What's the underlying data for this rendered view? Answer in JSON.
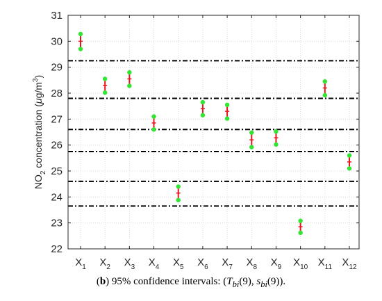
{
  "chart_data": {
    "type": "errorbar",
    "categories": [
      {
        "base": "X",
        "sub": "1"
      },
      {
        "base": "X",
        "sub": "2"
      },
      {
        "base": "X",
        "sub": "3"
      },
      {
        "base": "X",
        "sub": "4"
      },
      {
        "base": "X",
        "sub": "5"
      },
      {
        "base": "X",
        "sub": "6"
      },
      {
        "base": "X",
        "sub": "7"
      },
      {
        "base": "X",
        "sub": "8"
      },
      {
        "base": "X",
        "sub": "9"
      },
      {
        "base": "X",
        "sub": "10"
      },
      {
        "base": "X",
        "sub": "11"
      },
      {
        "base": "X",
        "sub": "12"
      }
    ],
    "points": [
      {
        "mean": 30.0,
        "low": 29.7,
        "high": 30.28
      },
      {
        "mean": 28.3,
        "low": 28.02,
        "high": 28.55
      },
      {
        "mean": 28.55,
        "low": 28.28,
        "high": 28.8
      },
      {
        "mean": 26.85,
        "low": 26.6,
        "high": 27.1
      },
      {
        "mean": 24.15,
        "low": 23.88,
        "high": 24.4
      },
      {
        "mean": 27.4,
        "low": 27.15,
        "high": 27.65
      },
      {
        "mean": 27.3,
        "low": 27.02,
        "high": 27.55
      },
      {
        "mean": 26.2,
        "low": 25.92,
        "high": 26.48
      },
      {
        "mean": 26.28,
        "low": 26.02,
        "high": 26.52
      },
      {
        "mean": 22.85,
        "low": 22.62,
        "high": 23.08
      },
      {
        "mean": 28.2,
        "low": 27.92,
        "high": 28.45
      },
      {
        "mean": 25.35,
        "low": 25.1,
        "high": 25.6
      }
    ],
    "reference_lines": [
      29.25,
      27.8,
      26.6,
      25.75,
      24.6,
      23.65
    ],
    "ylabel": {
      "pre": "NO",
      "sub1": "2",
      "mid": " concentration (",
      "mu": "μ",
      "unit": "g/m",
      "sup": "3",
      "post": ")"
    },
    "yticks": [
      22,
      23,
      24,
      25,
      26,
      27,
      28,
      29,
      30,
      31
    ],
    "ylim": [
      22,
      31
    ],
    "grid": "dotted",
    "colors": {
      "bar": "#e8141e",
      "marker": "#33e533",
      "reference": "#000000",
      "grid": "#d2d2d2",
      "axis": "#262626"
    }
  },
  "caption": {
    "open": "(",
    "letter": "b",
    "text": ") 95% confidence intervals: ",
    "math_open": "(",
    "t": "T",
    "t_sub": "bi",
    "t_arg": "(9), ",
    "s": "s",
    "s_sub": "bi",
    "s_arg": "(9)",
    "math_close": ").",
    "full": "(b) 95% confidence intervals: (Tbi(9), sbi(9))."
  }
}
